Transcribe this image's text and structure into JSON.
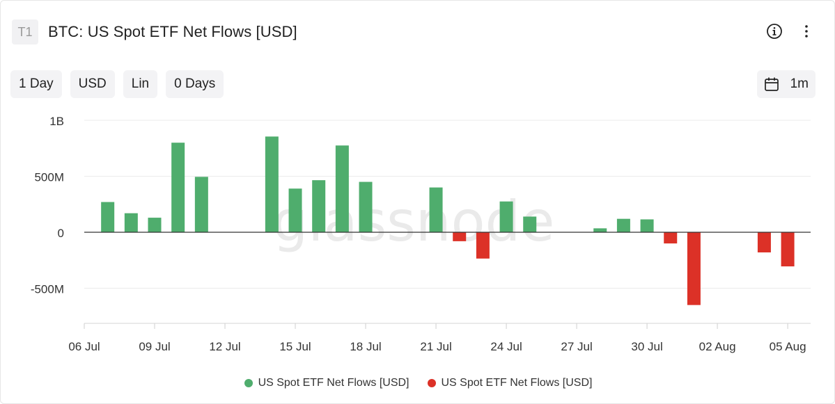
{
  "header": {
    "tier_badge": "T1",
    "title": "BTC: US Spot ETF Net Flows [USD]",
    "info_icon": "info-circle-icon",
    "more_icon": "vertical-ellipsis-icon"
  },
  "controls": {
    "resolution": "1 Day",
    "currency": "USD",
    "scale": "Lin",
    "moving_average": "0 Days",
    "range_icon": "calendar-icon",
    "range": "1m"
  },
  "watermark": "glassnode",
  "colors": {
    "positive": "#4fad6d",
    "negative": "#dc3127",
    "axis": "#333333",
    "grid": "#ebebeb",
    "watermark": "#d9d9d9"
  },
  "chart_data": {
    "type": "bar",
    "title": "BTC: US Spot ETF Net Flows [USD]",
    "xlabel": "",
    "ylabel": "",
    "ylim": [
      -800000000,
      1000000000
    ],
    "yticks": [
      {
        "value": 1000000000,
        "label": "1B"
      },
      {
        "value": 500000000,
        "label": "500M"
      },
      {
        "value": 0,
        "label": "0"
      },
      {
        "value": -500000000,
        "label": "-500M"
      }
    ],
    "xlim": [
      "2024-07-06",
      "2024-08-06"
    ],
    "xticks": [
      {
        "date": "2024-07-06",
        "label": "06 Jul"
      },
      {
        "date": "2024-07-09",
        "label": "09 Jul"
      },
      {
        "date": "2024-07-12",
        "label": "12 Jul"
      },
      {
        "date": "2024-07-15",
        "label": "15 Jul"
      },
      {
        "date": "2024-07-18",
        "label": "18 Jul"
      },
      {
        "date": "2024-07-21",
        "label": "21 Jul"
      },
      {
        "date": "2024-07-24",
        "label": "24 Jul"
      },
      {
        "date": "2024-07-27",
        "label": "27 Jul"
      },
      {
        "date": "2024-07-30",
        "label": "30 Jul"
      },
      {
        "date": "2024-08-02",
        "label": "02 Aug"
      },
      {
        "date": "2024-08-05",
        "label": "05 Aug"
      }
    ],
    "grid": true,
    "legend_position": "bottom-center",
    "series": [
      {
        "name": "US Spot ETF Net Flows [USD]",
        "color": "#4fad6d",
        "sign": "positive"
      },
      {
        "name": "US Spot ETF Net Flows [USD]",
        "color": "#dc3127",
        "sign": "negative"
      }
    ],
    "points": [
      {
        "date": "2024-07-07",
        "value": 270000000
      },
      {
        "date": "2024-07-08",
        "value": 170000000
      },
      {
        "date": "2024-07-09",
        "value": 130000000
      },
      {
        "date": "2024-07-10",
        "value": 800000000
      },
      {
        "date": "2024-07-11",
        "value": 495000000
      },
      {
        "date": "2024-07-14",
        "value": 855000000
      },
      {
        "date": "2024-07-15",
        "value": 390000000
      },
      {
        "date": "2024-07-16",
        "value": 465000000
      },
      {
        "date": "2024-07-17",
        "value": 775000000
      },
      {
        "date": "2024-07-18",
        "value": 450000000
      },
      {
        "date": "2024-07-21",
        "value": 400000000
      },
      {
        "date": "2024-07-22",
        "value": -80000000
      },
      {
        "date": "2024-07-23",
        "value": -235000000
      },
      {
        "date": "2024-07-24",
        "value": 275000000
      },
      {
        "date": "2024-07-25",
        "value": 140000000
      },
      {
        "date": "2024-07-28",
        "value": 35000000
      },
      {
        "date": "2024-07-29",
        "value": 120000000
      },
      {
        "date": "2024-07-30",
        "value": 115000000
      },
      {
        "date": "2024-07-31",
        "value": -100000000
      },
      {
        "date": "2024-08-01",
        "value": -650000000
      },
      {
        "date": "2024-08-04",
        "value": -180000000
      },
      {
        "date": "2024-08-05",
        "value": -305000000
      }
    ]
  }
}
